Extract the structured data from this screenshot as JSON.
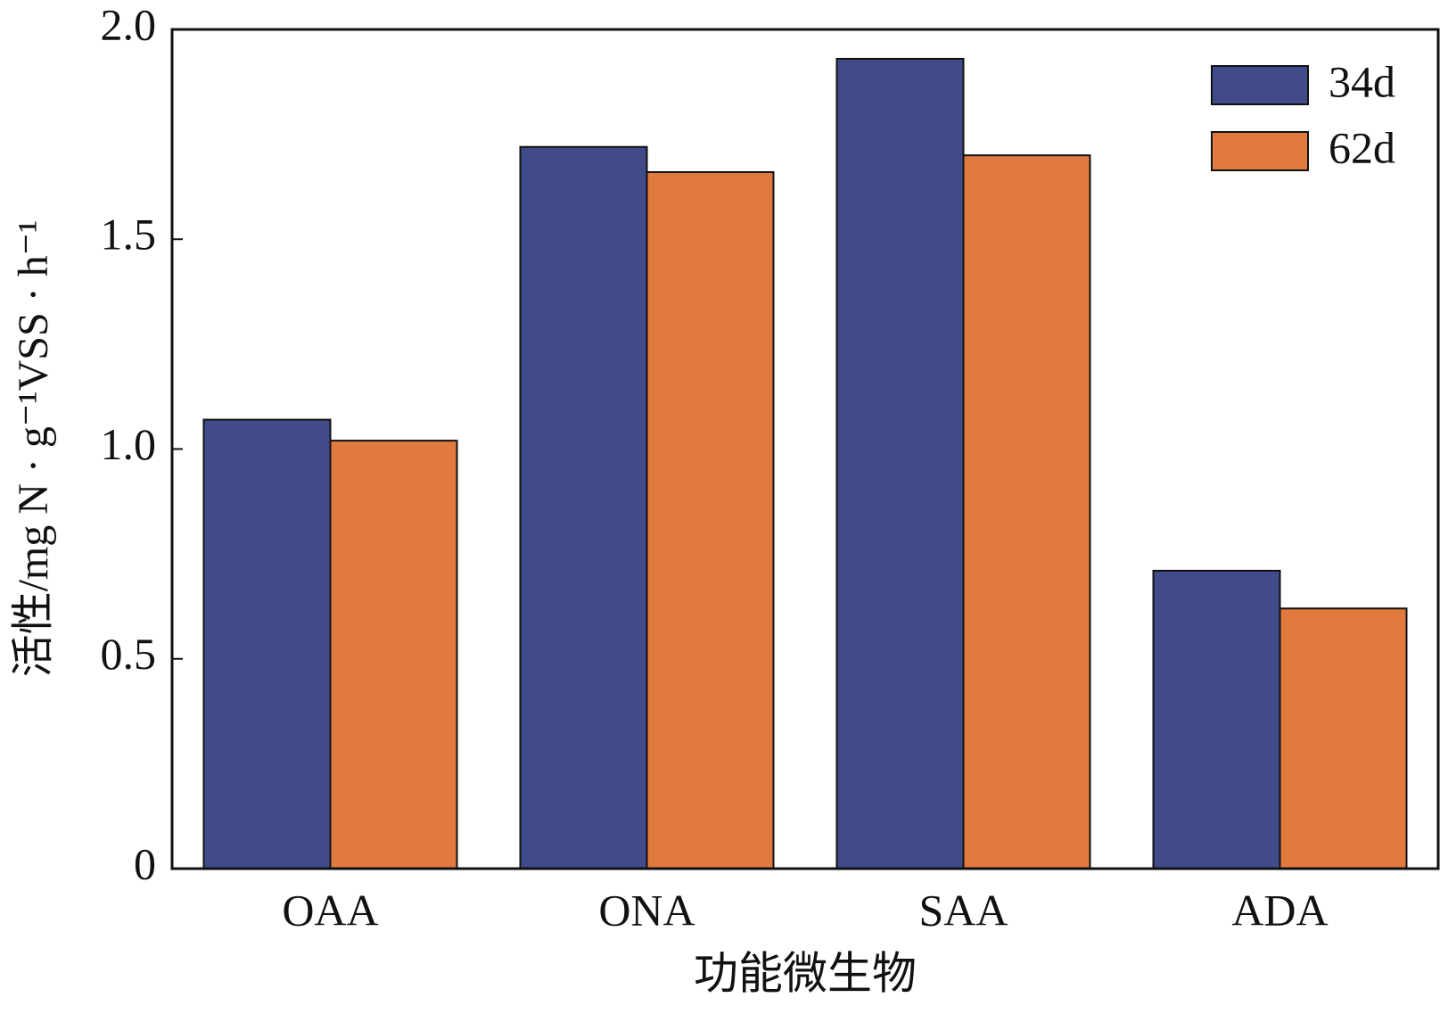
{
  "chart_data": {
    "type": "bar",
    "categories": [
      "OAA",
      "ONA",
      "SAA",
      "ADA"
    ],
    "series": [
      {
        "name": "34d",
        "color": "#424b8a",
        "values": [
          1.07,
          1.72,
          1.93,
          0.71
        ]
      },
      {
        "name": "62d",
        "color": "#e07a3f",
        "values": [
          1.02,
          1.66,
          1.7,
          0.62
        ]
      }
    ],
    "x_label": "功能微生物",
    "y_label": "活性/mg N · g⁻¹VSS · h⁻¹",
    "ylim": [
      0,
      2
    ],
    "yticks": [
      0,
      0.5,
      {
        "value": 1,
        "label": "1.0"
      },
      1.5,
      {
        "value": 2,
        "label": "2.0"
      }
    ],
    "legend": "top-right"
  }
}
